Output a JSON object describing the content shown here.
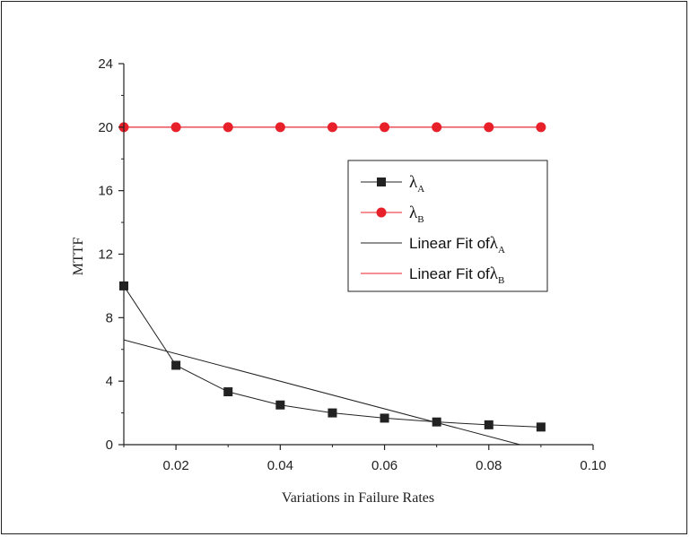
{
  "chart_data": {
    "type": "line",
    "title": "",
    "xlabel": "Variations in Failure Rates",
    "ylabel": "MTTF",
    "xlim": [
      0.01,
      0.1
    ],
    "ylim": [
      0,
      24
    ],
    "xticks": [
      0.02,
      0.04,
      0.06,
      0.08,
      0.1
    ],
    "xtick_labels": [
      "0.02",
      "0.04",
      "0.06",
      "0.08",
      "0.10"
    ],
    "yticks": [
      0,
      4,
      8,
      12,
      16,
      20,
      24
    ],
    "ytick_labels": [
      "0",
      "4",
      "8",
      "12",
      "16",
      "20",
      "24"
    ],
    "legend_position": "center-right",
    "grid": false,
    "series": [
      {
        "name": "λA",
        "symbol": "λ",
        "subscript": "A",
        "legend_prefix": "",
        "marker": "square",
        "color": "#222222",
        "x": [
          0.01,
          0.02,
          0.03,
          0.04,
          0.05,
          0.06,
          0.07,
          0.08,
          0.09
        ],
        "y": [
          10.0,
          5.0,
          3.33,
          2.5,
          2.0,
          1.67,
          1.43,
          1.25,
          1.11
        ]
      },
      {
        "name": "λB",
        "symbol": "λ",
        "subscript": "B",
        "legend_prefix": "",
        "marker": "circle",
        "color": "#e8202a",
        "x": [
          0.01,
          0.02,
          0.03,
          0.04,
          0.05,
          0.06,
          0.07,
          0.08,
          0.09
        ],
        "y": [
          20,
          20,
          20,
          20,
          20,
          20,
          20,
          20,
          20
        ]
      }
    ],
    "fits": [
      {
        "name": "Linear Fit of λA",
        "legend_prefix": "Linear Fit of ",
        "symbol": "λ",
        "subscript": "A",
        "color": "#222222",
        "x": [
          0.01,
          0.086
        ],
        "y": [
          6.6,
          0
        ]
      },
      {
        "name": "Linear Fit of λB",
        "legend_prefix": "Linear Fit of ",
        "symbol": "λ",
        "subscript": "B",
        "color": "#e8202a",
        "x": [
          0.01,
          0.09
        ],
        "y": [
          20,
          20
        ]
      }
    ]
  }
}
